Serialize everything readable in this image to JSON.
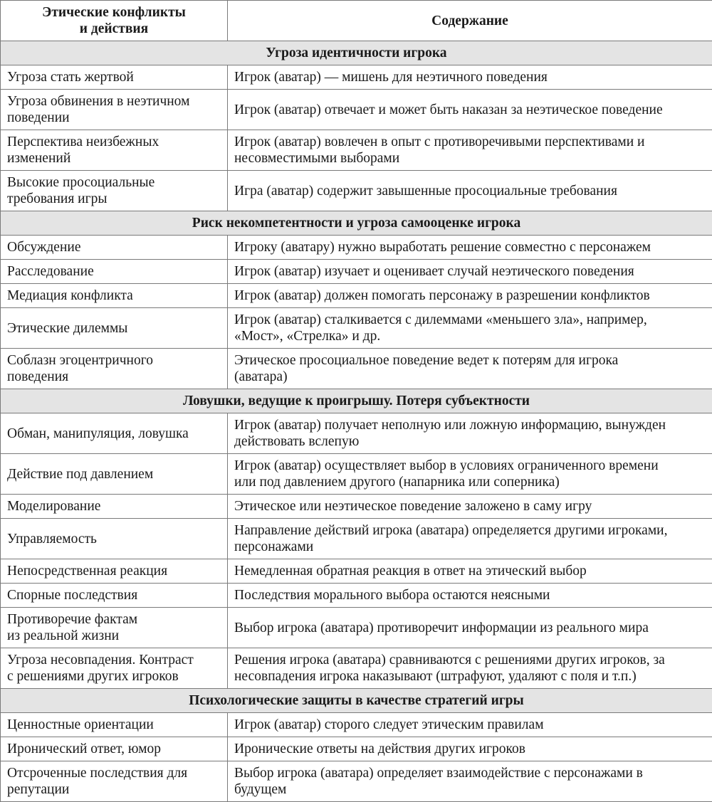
{
  "header": {
    "col1": "Этические конфликты\nи действия",
    "col2": "Содержание"
  },
  "sections": [
    {
      "title": "Угроза идентичности игрока",
      "rows": [
        {
          "action": "Угроза стать жертвой",
          "content": "Игрок (аватар) — мишень для неэтичного поведения"
        },
        {
          "action": "Угроза обвинения в неэтичном\nповедении",
          "content": "Игрок (аватар) отвечает и может быть наказан за неэтическое поведение"
        },
        {
          "action": "Перспектива неизбежных\nизменений",
          "content": "Игрок (аватар) вовлечен в опыт с противоречивыми перспективами и\nнесовместимыми выборами"
        },
        {
          "action": "Высокие просоциальные\nтребования игры",
          "content": "Игра (аватар) содержит завышенные просоциальные требования"
        }
      ]
    },
    {
      "title": "Риск некомпетентности и угроза самооценке игрока",
      "rows": [
        {
          "action": "Обсуждение",
          "content": "Игроку (аватару) нужно выработать решение совместно с персонажем"
        },
        {
          "action": "Расследование",
          "content": "Игрок (аватар) изучает и оценивает случай неэтического поведения"
        },
        {
          "action": "Медиация конфликта",
          "content": "Игрок (аватар) должен помогать персонажу в разрешении конфликтов"
        },
        {
          "action": "Этические дилеммы",
          "content": "Игрок (аватар) сталкивается с дилеммами «меньшего зла», например,\n«Мост», «Стрелка» и др."
        },
        {
          "action": "Соблазн эгоцентричного\nповедения",
          "content": "Этическое просоциальное поведение ведет к потерям для игрока\n(аватара)"
        }
      ]
    },
    {
      "title": "Ловушки, ведущие к проигрышу. Потеря субъектности",
      "rows": [
        {
          "action": "Обман, манипуляция, ловушка",
          "content": "Игрок (аватар) получает неполную или ложную информацию, вынужден\nдействовать вслепую"
        },
        {
          "action": "Действие под давлением",
          "content": "Игрок (аватар) осуществляет выбор в условиях ограниченного времени\nили под давлением другого (напарника или соперника)"
        },
        {
          "action": "Моделирование",
          "content": "Этическое или неэтическое поведение заложено в саму игру"
        },
        {
          "action": "Управляемость",
          "content": "Направление действий игрока (аватара) определяется другими игроками,\nперсонажами"
        },
        {
          "action": "Непосредственная реакция",
          "content": "Немедленная обратная реакция в ответ на этический выбор"
        },
        {
          "action": "Спорные последствия",
          "content": "Последствия морального выбора остаются неясными"
        },
        {
          "action": "Противоречие фактам\nиз реальной жизни",
          "content": "Выбор игрока (аватара) противоречит информации из реального мира"
        },
        {
          "action": "Угроза несовпадения. Контраст\nс решениями других игроков",
          "content": "Решения игрока (аватара) сравниваются с решениями других игроков, за\nнесовпадения игрока наказывают (штрафуют, удаляют с поля и т.п.)"
        }
      ]
    },
    {
      "title": "Психологические защиты в качестве стратегий игры",
      "rows": [
        {
          "action": "Ценностные ориентации",
          "content": "Игрок (аватар) сторого следует этическим правилам"
        },
        {
          "action": "Иронический ответ, юмор",
          "content": "Иронические ответы на действия других игроков"
        },
        {
          "action": "Отсроченные последствия для\nрепутации",
          "content": "Выбор игрока (аватара) определяет взаимодействие с персонажами в\nбудущем"
        }
      ]
    }
  ]
}
